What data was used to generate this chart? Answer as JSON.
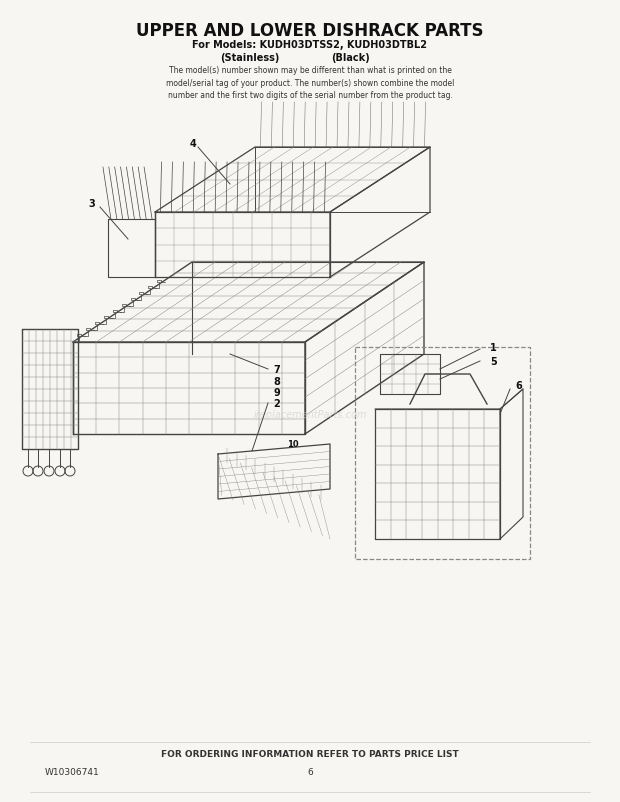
{
  "title": "UPPER AND LOWER DISHRACK PARTS",
  "subtitle_line1": "For Models: KUDH03DTSS2, KUDH03DTBL2",
  "subtitle_line2_left": "(Stainless)",
  "subtitle_line2_right": "(Black)",
  "description": "The model(s) number shown may be different than what is printed on the\nmodel/serial tag of your product. The number(s) shown combine the model\nnumber and the first two digits of the serial number from the product tag.",
  "footer_text": "FOR ORDERING INFORMATION REFER TO PARTS PRICE LIST",
  "doc_number": "W10306741",
  "page_number": "6",
  "bg_color": "#f7f6f2",
  "line_color": "#444444",
  "light_line": "#888888",
  "watermark": "ireplacementParts.com"
}
